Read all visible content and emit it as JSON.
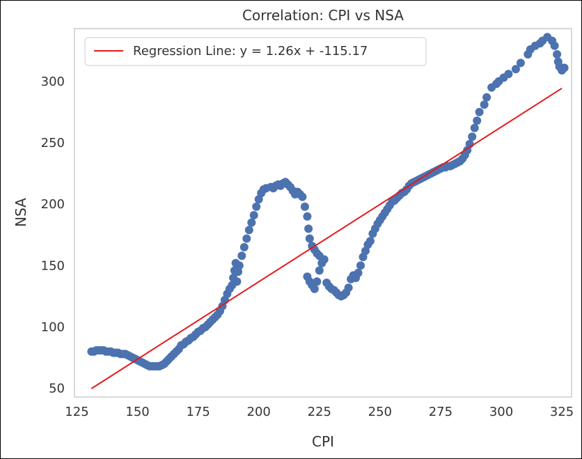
{
  "chart_data": {
    "type": "scatter",
    "title": "Correlation: CPI vs NSA",
    "xlabel": "CPI",
    "ylabel": "NSA",
    "xlim": [
      124,
      329
    ],
    "ylim": [
      43,
      343
    ],
    "xticks": [
      125,
      150,
      175,
      200,
      225,
      250,
      275,
      300,
      325
    ],
    "yticks": [
      50,
      100,
      150,
      200,
      250,
      300
    ],
    "grid": false,
    "legend_position": "top-left",
    "legend": [
      {
        "label": "Regression Line: y = 1.26x + -115.17",
        "color": "#e41a1c"
      }
    ],
    "regression": {
      "slope": 1.26,
      "intercept": -115.17,
      "x_range": [
        131,
        325
      ],
      "color": "#e41a1c"
    },
    "marker_color": "#4c72b0",
    "series": [
      {
        "points": [
          [
            131,
            80
          ],
          [
            132,
            80
          ],
          [
            133,
            81
          ],
          [
            134,
            81
          ],
          [
            135,
            81
          ],
          [
            136,
            81
          ],
          [
            137,
            80
          ],
          [
            138,
            80
          ],
          [
            139,
            80
          ],
          [
            140,
            79
          ],
          [
            141,
            79
          ],
          [
            142,
            79
          ],
          [
            143,
            78
          ],
          [
            144,
            78
          ],
          [
            145,
            78
          ],
          [
            146,
            77
          ],
          [
            147,
            76
          ],
          [
            148,
            75
          ],
          [
            149,
            74
          ],
          [
            150,
            73
          ],
          [
            151,
            72
          ],
          [
            152,
            71
          ],
          [
            153,
            70
          ],
          [
            154,
            69
          ],
          [
            155,
            68
          ],
          [
            156,
            68
          ],
          [
            157,
            68
          ],
          [
            158,
            68
          ],
          [
            159,
            68
          ],
          [
            160,
            69
          ],
          [
            161,
            70
          ],
          [
            162,
            72
          ],
          [
            163,
            74
          ],
          [
            164,
            76
          ],
          [
            165,
            78
          ],
          [
            166,
            80
          ],
          [
            167,
            82
          ],
          [
            168,
            85
          ],
          [
            169,
            86
          ],
          [
            170,
            88
          ],
          [
            171,
            89
          ],
          [
            172,
            91
          ],
          [
            173,
            92
          ],
          [
            174,
            94
          ],
          [
            175,
            96
          ],
          [
            176,
            97
          ],
          [
            177,
            99
          ],
          [
            178,
            100
          ],
          [
            179,
            102
          ],
          [
            180,
            104
          ],
          [
            181,
            106
          ],
          [
            182,
            108
          ],
          [
            183,
            110
          ],
          [
            184,
            113
          ],
          [
            185,
            117
          ],
          [
            186,
            122
          ],
          [
            187,
            127
          ],
          [
            188,
            131
          ],
          [
            189,
            134
          ],
          [
            189.5,
            140
          ],
          [
            190,
            146
          ],
          [
            190.5,
            152
          ],
          [
            191,
            137
          ],
          [
            191.5,
            145
          ],
          [
            192,
            150
          ],
          [
            193,
            158
          ],
          [
            194,
            165
          ],
          [
            195,
            172
          ],
          [
            196,
            179
          ],
          [
            197,
            185
          ],
          [
            198,
            191
          ],
          [
            199,
            198
          ],
          [
            200,
            204
          ],
          [
            201,
            209
          ],
          [
            202,
            212
          ],
          [
            203,
            213
          ],
          [
            205,
            214
          ],
          [
            206,
            213
          ],
          [
            207,
            215
          ],
          [
            208,
            216
          ],
          [
            209,
            215
          ],
          [
            210,
            217
          ],
          [
            211,
            218
          ],
          [
            212,
            216
          ],
          [
            213,
            214
          ],
          [
            214,
            211
          ],
          [
            215,
            208
          ],
          [
            216,
            210
          ],
          [
            217,
            208
          ],
          [
            218,
            206
          ],
          [
            219,
            198
          ],
          [
            220,
            190
          ],
          [
            220.5,
            180
          ],
          [
            221,
            172
          ],
          [
            222,
            166
          ],
          [
            223,
            163
          ],
          [
            224,
            160
          ],
          [
            225,
            158
          ],
          [
            220,
            141
          ],
          [
            221,
            137
          ],
          [
            222,
            134
          ],
          [
            223,
            131
          ],
          [
            224,
            137
          ],
          [
            225,
            146
          ],
          [
            226,
            152
          ],
          [
            227,
            155
          ],
          [
            228,
            136
          ],
          [
            229,
            133
          ],
          [
            230,
            131
          ],
          [
            231,
            130
          ],
          [
            232,
            128
          ],
          [
            233,
            126
          ],
          [
            234,
            125
          ],
          [
            235,
            126
          ],
          [
            236,
            128
          ],
          [
            237,
            132
          ],
          [
            238,
            139
          ],
          [
            239,
            142
          ],
          [
            240,
            140
          ],
          [
            241,
            144
          ],
          [
            242,
            150
          ],
          [
            243,
            157
          ],
          [
            244,
            162
          ],
          [
            245,
            167
          ],
          [
            246,
            170
          ],
          [
            247,
            176
          ],
          [
            248,
            180
          ],
          [
            249,
            184
          ],
          [
            250,
            187
          ],
          [
            251,
            190
          ],
          [
            252,
            193
          ],
          [
            253,
            196
          ],
          [
            254,
            199
          ],
          [
            255,
            202
          ],
          [
            256,
            203
          ],
          [
            257,
            205
          ],
          [
            258,
            207
          ],
          [
            259,
            209
          ],
          [
            260,
            210
          ],
          [
            261,
            212
          ],
          [
            262,
            215
          ],
          [
            263,
            217
          ],
          [
            264,
            218
          ],
          [
            265,
            219
          ],
          [
            266,
            220
          ],
          [
            267,
            221
          ],
          [
            268,
            222
          ],
          [
            269,
            223
          ],
          [
            270,
            224
          ],
          [
            271,
            225
          ],
          [
            272,
            226
          ],
          [
            273,
            227
          ],
          [
            274,
            228
          ],
          [
            275,
            229
          ],
          [
            276,
            230
          ],
          [
            277,
            230
          ],
          [
            278,
            231
          ],
          [
            279,
            231
          ],
          [
            280,
            232
          ],
          [
            281,
            233
          ],
          [
            282,
            234
          ],
          [
            283,
            235
          ],
          [
            284,
            237
          ],
          [
            285,
            240
          ],
          [
            286,
            244
          ],
          [
            287,
            249
          ],
          [
            288,
            255
          ],
          [
            289,
            262
          ],
          [
            290,
            268
          ],
          [
            291,
            275
          ],
          [
            293,
            281
          ],
          [
            294,
            287
          ],
          [
            296,
            295
          ],
          [
            298,
            298
          ],
          [
            299,
            300
          ],
          [
            301,
            303
          ],
          [
            303,
            306
          ],
          [
            306,
            310
          ],
          [
            308,
            315
          ],
          [
            311,
            322
          ],
          [
            312,
            326
          ],
          [
            314,
            329
          ],
          [
            316,
            331
          ],
          [
            317,
            333
          ],
          [
            319,
            336
          ],
          [
            321,
            333
          ],
          [
            322,
            329
          ],
          [
            323,
            322
          ],
          [
            323.5,
            316
          ],
          [
            324,
            312
          ],
          [
            325,
            309
          ],
          [
            326,
            311
          ]
        ]
      }
    ]
  }
}
